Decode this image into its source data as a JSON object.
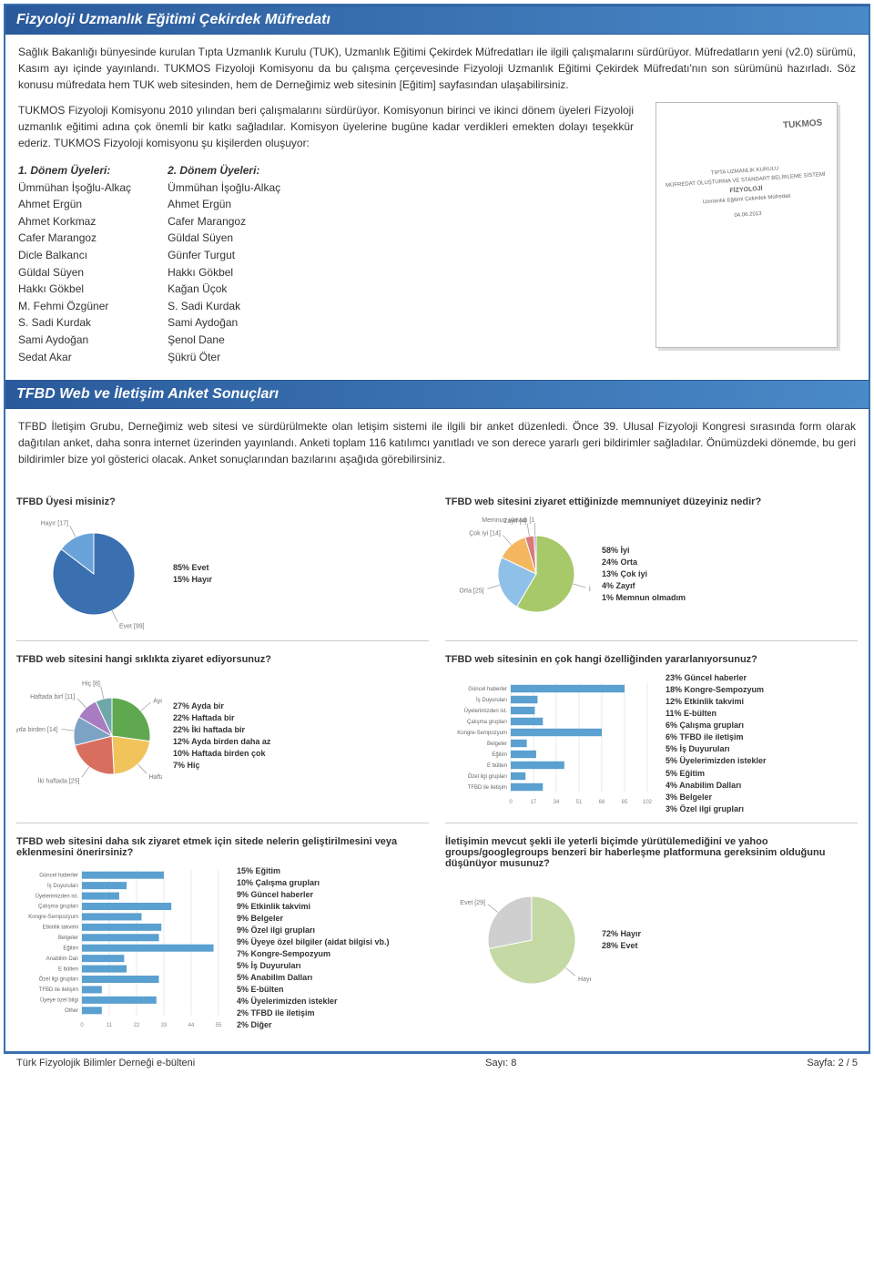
{
  "section1": {
    "title": "Fizyoloji Uzmanlık Eğitimi Çekirdek Müfredatı",
    "para1": "Sağlık Bakanlığı bünyesinde kurulan Tıpta Uzmanlık Kurulu (TUK), Uzmanlık Eğitimi Çekirdek Müfredatları ile ilgili çalışmalarını sürdürüyor. Müfredatların yeni (v2.0) sürümü, Kasım ayı içinde yayınlandı.  TUKMOS Fizyoloji Komisyonu da bu çalışma çerçevesinde Fizyoloji Uzmanlık Eğitimi Çekirdek Müfredatı'nın son sürümünü hazırladı. Söz konusu müfredata hem TUK web sitesinden, hem de Derneğimiz web sitesinin [Eğitim] sayfasından ulaşabilirsiniz.",
    "para2": "TUKMOS Fizyoloji Komisyonu 2010 yılından beri çalışmalarını sürdürüyor. Komisyonun birinci ve ikinci dönem üyeleri Fizyoloji uzmanlık eğitimi adına çok önemli bir katkı sağladılar. Komisyon üyelerine bugüne kadar verdikleri emekten dolayı teşekkür ederiz. TUKMOS Fizyoloji komisyonu şu kişilerden oluşuyor:",
    "col1_title": "1. Dönem Üyeleri:",
    "col1_members": [
      "Ümmühan İşoğlu-Alkaç",
      "Ahmet Ergün",
      "Ahmet Korkmaz",
      "Cafer Marangoz",
      "Dicle Balkancı",
      "Güldal Süyen",
      "Hakkı Gökbel",
      "M. Fehmi Özgüner",
      "S. Sadi Kurdak",
      "Sami Aydoğan",
      "Sedat Akar"
    ],
    "col2_title": "2. Dönem Üyeleri:",
    "col2_members": [
      "Ümmühan İşoğlu-Alkaç",
      "Ahmet Ergün",
      "Cafer Marangoz",
      "Güldal Süyen",
      "Günfer Turgut",
      "Hakkı Gökbel",
      "Kağan Üçok",
      "S. Sadi Kurdak",
      "Sami Aydoğan",
      "Şenol Dane",
      "Şükrü Öter"
    ],
    "thumb": {
      "tukmos": "TUKMOS",
      "line1": "TIPTA UZMANLIK KURULU",
      "line2": "MÜFREDAT OLUŞTURMA VE STANDART BELİRLEME SİSTEMİ",
      "line3": "FİZYOLOJİ",
      "line4": "Uzmanlık Eğitimi Çekirdek Müfredatı",
      "line5": "04.06.2013"
    }
  },
  "section2": {
    "title": "TFBD Web ve İletişim Anket Sonuçları",
    "intro": "TFBD İletişim Grubu, Derneğimiz web sitesi ve sürdürülmekte olan letişim sistemi ile ilgili bir anket düzenledi. Önce 39. Ulusal Fizyoloji Kongresi sırasında form olarak dağıtılan anket, daha sonra internet üzerinden yayınlandı. Anketi toplam 116 katılımcı yanıtladı ve son derece yararlı geri bildirimler sağladılar. Önümüzdeki dönemde, bu geri bildirimler bize yol gösterici olacak. Anket sonuçlarından bazılarını aşağıda görebilirsiniz."
  },
  "chart1": {
    "title": "TFBD Üyesi misiniz?",
    "type": "pie",
    "slices": [
      {
        "label": "Evet [99]",
        "value": 99,
        "color": "#3a6fb0"
      },
      {
        "label": "Hayır [17]",
        "value": 17,
        "color": "#6aa3d9"
      }
    ],
    "summary": "85% Evet\n15% Hayır"
  },
  "chart2": {
    "title": "TFBD web sitesini ziyaret ettiğinizde memnuniyet düzeyiniz nedir?",
    "type": "pie",
    "slices": [
      {
        "label": "İyi [62]",
        "value": 62,
        "color": "#a7c96a"
      },
      {
        "label": "Orta [25]",
        "value": 25,
        "color": "#8fc0e8"
      },
      {
        "label": "Çok iyi [14]",
        "value": 14,
        "color": "#f4b75f"
      },
      {
        "label": "Zayıf [4]",
        "value": 4,
        "color": "#d97a7a"
      },
      {
        "label": "Memnun olmadı [1",
        "value": 1,
        "color": "#b090c8"
      }
    ],
    "summary": "58% İyi\n24% Orta\n13% Çok iyi\n4% Zayıf\n1% Memnun olmadım"
  },
  "chart3": {
    "title": "TFBD web sitesini hangi sıklıkta ziyaret ediyorsunuz?",
    "type": "pie",
    "slices": [
      {
        "label": "Ayda bir [31]",
        "value": 31,
        "color": "#5fa850"
      },
      {
        "label": "Haftada bir [25]",
        "value": 25,
        "color": "#f1c45b"
      },
      {
        "label": "İki haftada [25]",
        "value": 25,
        "color": "#d86f5e"
      },
      {
        "label": "Ayda birden [14]",
        "value": 14,
        "color": "#7da3c4"
      },
      {
        "label": "Haftada birf [11]",
        "value": 11,
        "color": "#a87cc0"
      },
      {
        "label": "Hiç [8]",
        "value": 8,
        "color": "#6fa8a8"
      }
    ],
    "summary": "27% Ayda bir\n22% Haftada bir\n22% İki haftada bir\n12% Ayda birden daha az\n10% Haftada birden çok\n7% Hiç"
  },
  "chart4": {
    "title": "TFBD web sitesinin en çok hangi özelliğinden yararlanıyorsunuz?",
    "type": "bar",
    "max": 102,
    "ticks": [
      0,
      17,
      34,
      51,
      68,
      85,
      102
    ],
    "bars": [
      {
        "label": "Güncel haberler",
        "value": 85,
        "color": "#5aa0d0"
      },
      {
        "label": "İş Duyuruları",
        "value": 20,
        "color": "#5aa0d0"
      },
      {
        "label": "Üyelerimizden ist.",
        "value": 18,
        "color": "#5aa0d0"
      },
      {
        "label": "Çalışma grupları",
        "value": 24,
        "color": "#5aa0d0"
      },
      {
        "label": "Kongre-Sempozyum",
        "value": 68,
        "color": "#5aa0d0"
      },
      {
        "label": "Belgeler",
        "value": 12,
        "color": "#5aa0d0"
      },
      {
        "label": "Eğitim",
        "value": 19,
        "color": "#5aa0d0"
      },
      {
        "label": "E bülten",
        "value": 40,
        "color": "#5aa0d0"
      },
      {
        "label": "Özel ilgi grupları",
        "value": 11,
        "color": "#5aa0d0"
      },
      {
        "label": "TFBD ile iletişim",
        "value": 24,
        "color": "#5aa0d0"
      }
    ],
    "summary": "23% Güncel haberler\n18% Kongre-Sempozyum\n12% Etkinlik takvimi\n11% E-bülten\n6% Çalışma grupları\n6% TFBD ile iletişim\n5% İş Duyuruları\n5% Üyelerimizden istekler\n5% Eğitim\n4% Anabilim Dalları\n3% Belgeler\n3% Özel ilgi grupları"
  },
  "chart5": {
    "title": "TFBD web sitesini daha sık ziyaret etmek için sitede nelerin geliştirilmesini veya eklenmesini önerirsiniz?",
    "type": "bar",
    "max": 55,
    "ticks": [
      0,
      11,
      22,
      33,
      44,
      55
    ],
    "bars": [
      {
        "label": "Güncel haberler",
        "value": 33,
        "color": "#5aa0d0"
      },
      {
        "label": "İş Duyuruları",
        "value": 18,
        "color": "#5aa0d0"
      },
      {
        "label": "Üyelerimizden ist.",
        "value": 15,
        "color": "#5aa0d0"
      },
      {
        "label": "Çalışma grupları",
        "value": 36,
        "color": "#5aa0d0"
      },
      {
        "label": "Kongre-Sempozyum",
        "value": 24,
        "color": "#5aa0d0"
      },
      {
        "label": "Etkinlik takvimi",
        "value": 32,
        "color": "#5aa0d0"
      },
      {
        "label": "Belgeler",
        "value": 31,
        "color": "#5aa0d0"
      },
      {
        "label": "Eğitim",
        "value": 53,
        "color": "#5aa0d0"
      },
      {
        "label": "Anabilim Dalı",
        "value": 17,
        "color": "#5aa0d0"
      },
      {
        "label": "E bülten",
        "value": 18,
        "color": "#5aa0d0"
      },
      {
        "label": "Özel ilgi grupları",
        "value": 31,
        "color": "#5aa0d0"
      },
      {
        "label": "TFBD ile iletişim",
        "value": 8,
        "color": "#5aa0d0"
      },
      {
        "label": "Üyeye özel bilgi",
        "value": 30,
        "color": "#5aa0d0"
      },
      {
        "label": "Other",
        "value": 8,
        "color": "#5aa0d0"
      }
    ],
    "summary": "15% Eğitim\n10% Çalışma grupları\n9% Güncel haberler\n9% Etkinlik takvimi\n9% Belgeler\n9% Özel ilgi grupları\n9% Üyeye özel bilgiler (aidat bilgisi vb.)\n7% Kongre-Sempozyum\n5% İş Duyuruları\n5% Anabilim Dalları\n5% E-bülten\n4% Üyelerimizden istekler\n2% TFBD ile iletişim\n2% Diğer"
  },
  "chart6": {
    "title": "İletişimin mevcut şekli ile yeterli biçimde yürütülemediğini ve yahoo groups/googlegroups benzeri bir haberleşme platformuna gereksinim olduğunu düşünüyor musunuz?",
    "type": "pie",
    "slices": [
      {
        "label": "Hayır [74]",
        "value": 74,
        "color": "#c4d9a3"
      },
      {
        "label": "Evet [29]",
        "value": 29,
        "color": "#cfcfcf"
      }
    ],
    "summary": "72% Hayır\n28% Evet"
  },
  "footer": {
    "left": "Türk Fizyolojik Bilimler Derneği e-bülteni",
    "center": "Sayı: 8",
    "right": "Sayfa: 2 / 5"
  },
  "colors": {
    "header_bg": "#2a5a9b",
    "border": "#3a6fb0"
  }
}
